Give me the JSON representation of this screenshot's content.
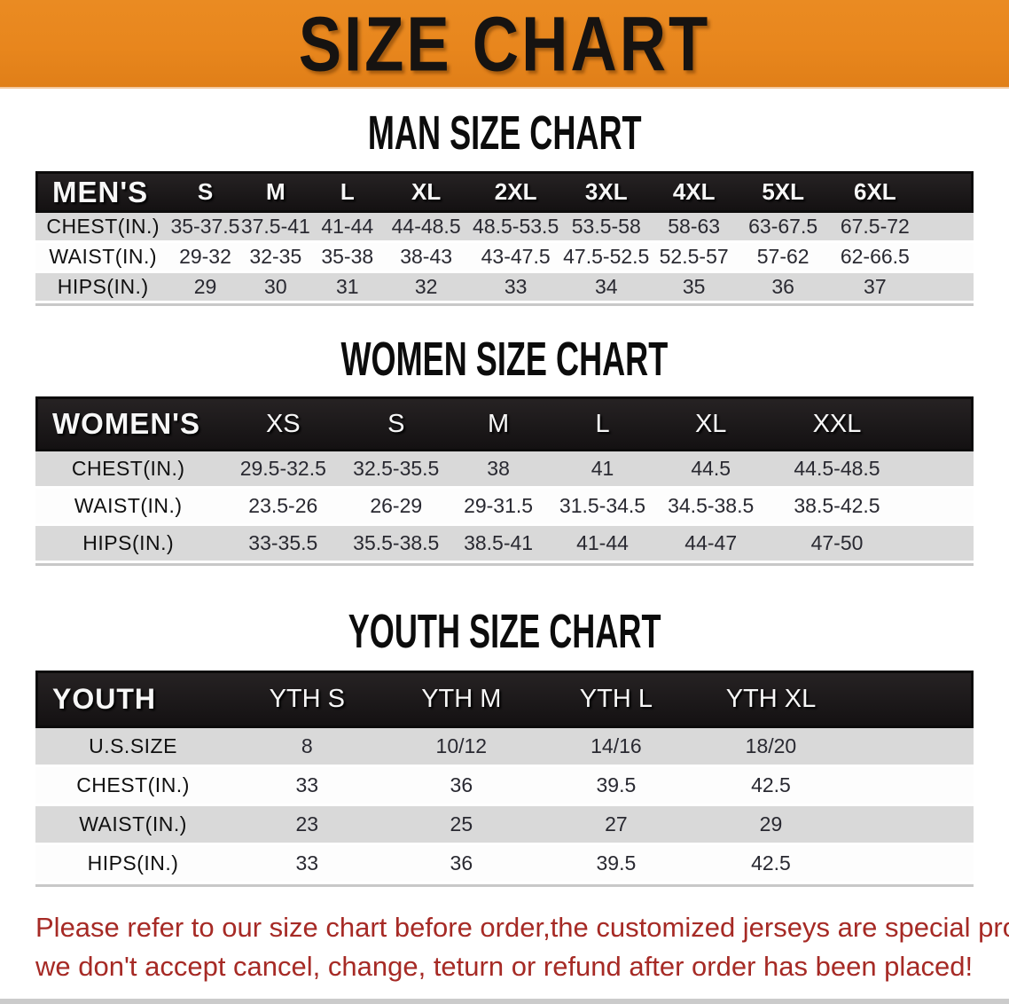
{
  "banner": {
    "title": "SIZE CHART"
  },
  "colors": {
    "banner_orange": "#e8861d",
    "header_black": "#1b1819",
    "row_gray": "#d9d9d9",
    "row_white": "#fdfdfd",
    "footer_red": "#a62a25"
  },
  "sections": [
    {
      "heading": "MAN SIZE CHART",
      "table": {
        "header_label": "MEN'S",
        "columns": [
          "S",
          "M",
          "L",
          "XL",
          "2XL",
          "3XL",
          "4XL",
          "5XL",
          "6XL"
        ],
        "rows": [
          {
            "label": "CHEST(IN.)",
            "values": [
              "35-37.5",
              "37.5-41",
              "41-44",
              "44-48.5",
              "48.5-53.5",
              "53.5-58",
              "58-63",
              "63-67.5",
              "67.5-72"
            ]
          },
          {
            "label": "WAIST(IN.)",
            "values": [
              "29-32",
              "32-35",
              "35-38",
              "38-43",
              "43-47.5",
              "47.5-52.5",
              "52.5-57",
              "57-62",
              "62-66.5"
            ]
          },
          {
            "label": "HIPS(IN.)",
            "values": [
              "29",
              "30",
              "31",
              "32",
              "33",
              "34",
              "35",
              "36",
              "37"
            ]
          }
        ]
      }
    },
    {
      "heading": "WOMEN SIZE CHART",
      "table": {
        "header_label": "WOMEN'S",
        "columns": [
          "XS",
          "S",
          "M",
          "L",
          "XL",
          "XXL"
        ],
        "rows": [
          {
            "label": "CHEST(IN.)",
            "values": [
              "29.5-32.5",
              "32.5-35.5",
              "38",
              "41",
              "44.5",
              "44.5-48.5"
            ]
          },
          {
            "label": "WAIST(IN.)",
            "values": [
              "23.5-26",
              "26-29",
              "29-31.5",
              "31.5-34.5",
              "34.5-38.5",
              "38.5-42.5"
            ]
          },
          {
            "label": "HIPS(IN.)",
            "values": [
              "33-35.5",
              "35.5-38.5",
              "38.5-41",
              "41-44",
              "44-47",
              "47-50"
            ]
          }
        ]
      }
    },
    {
      "heading": "YOUTH SIZE CHART",
      "table": {
        "header_label": "YOUTH",
        "columns": [
          "YTH S",
          "YTH M",
          "YTH L",
          "YTH XL"
        ],
        "rows": [
          {
            "label": "U.S.SIZE",
            "values": [
              "8",
              "10/12",
              "14/16",
              "18/20"
            ]
          },
          {
            "label": "CHEST(IN.)",
            "values": [
              "33",
              "36",
              "39.5",
              "42.5"
            ]
          },
          {
            "label": "WAIST(IN.)",
            "values": [
              "23",
              "25",
              "27",
              "29"
            ]
          },
          {
            "label": "HIPS(IN.)",
            "values": [
              "33",
              "36",
              "39.5",
              "42.5"
            ]
          }
        ]
      }
    }
  ],
  "footer": {
    "line1": "Please refer to our size chart before order,the customized jerseys are special products,",
    "line2": "we don't accept cancel, change, teturn or refund after order has been placed!"
  }
}
